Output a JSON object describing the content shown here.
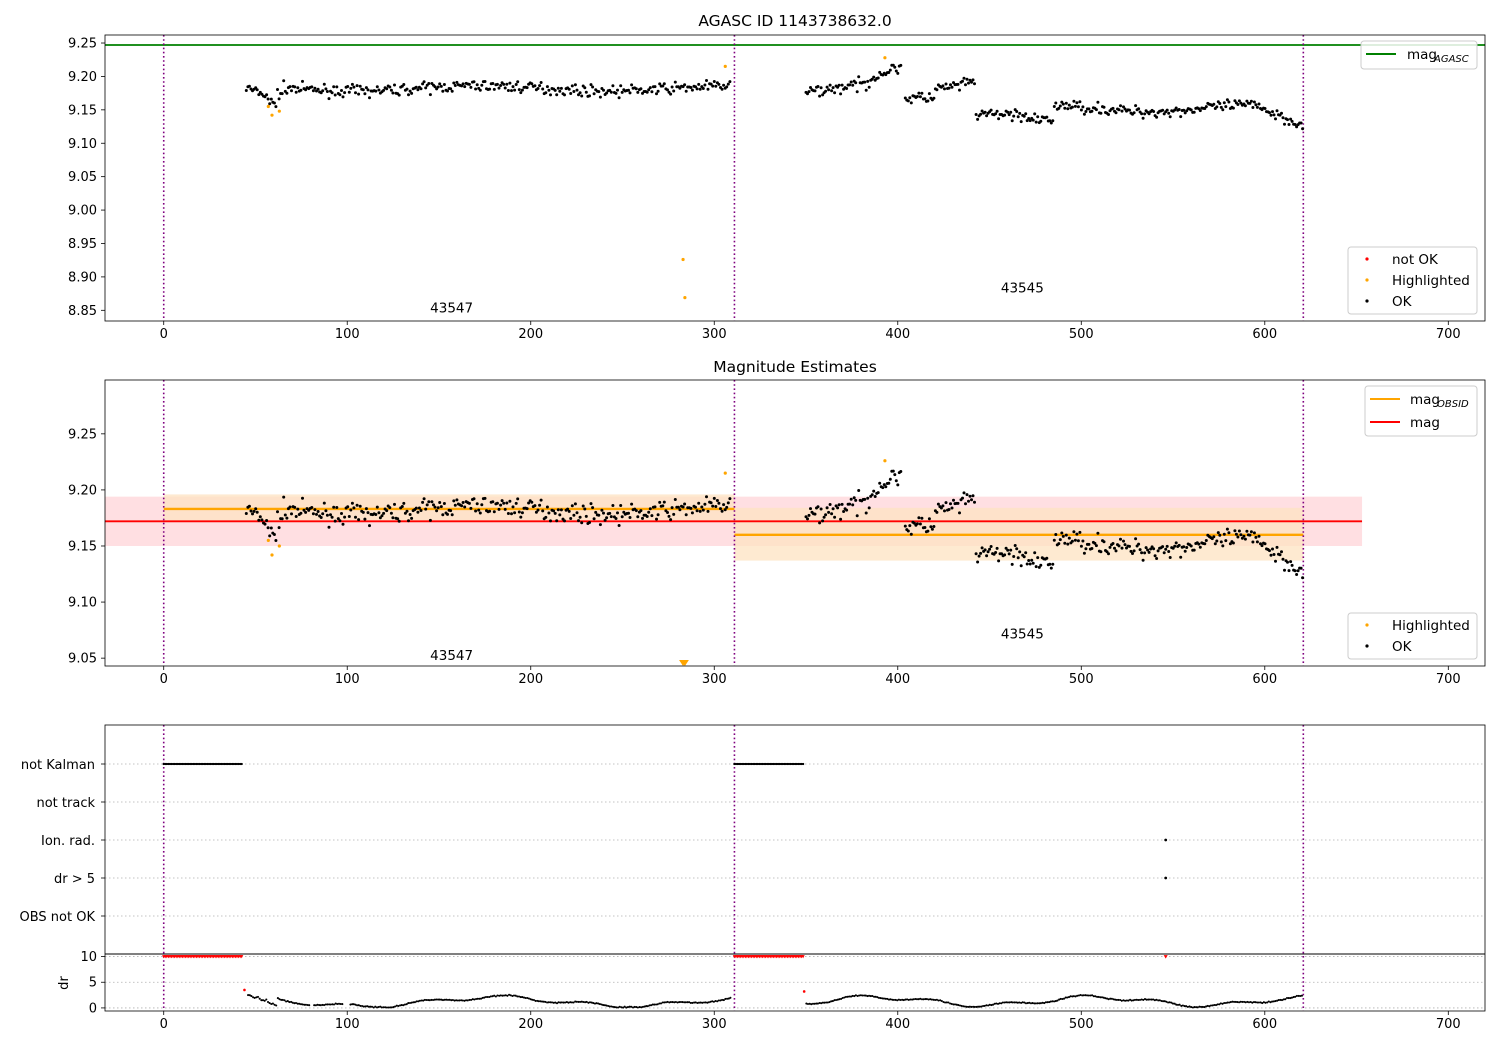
{
  "window": {
    "width": 1500,
    "height": 1050
  },
  "colors": {
    "ok": "#000000",
    "highlighted": "#ffa500",
    "not_ok": "#ff0000",
    "mag_agasc_line": "#008000",
    "mag_obsid_line": "#ffa500",
    "mag_line": "#ff0000",
    "obsid_separator": "#7f007f",
    "mag_band": "#ffc0c5",
    "mag_obsid_band": "#fde3c2"
  },
  "chart_data": [
    {
      "type": "scatter",
      "title": "AGASC ID 1143738632.0",
      "xlim": [
        -32,
        720
      ],
      "ylim": [
        8.834,
        9.262
      ],
      "xticks": [
        "0",
        "100",
        "200",
        "300",
        "400",
        "500",
        "600",
        "700"
      ],
      "yticks": [
        "8.85",
        "8.90",
        "8.95",
        "9.00",
        "9.05",
        "9.10",
        "9.15",
        "9.20",
        "9.25"
      ],
      "obsid_boundaries": [
        0,
        311,
        621
      ],
      "obsid_labels": [
        {
          "text": "43547",
          "x": 155,
          "y": 8.854
        },
        {
          "text": "43545",
          "x": 466,
          "y": 8.884
        }
      ],
      "hlines": [
        {
          "name": "mag_AGASC",
          "y": 9.247
        }
      ],
      "legend": {
        "upper": [
          {
            "label": "mag",
            "sub": "AGASC",
            "line": "mag_agasc_line"
          }
        ],
        "lower": [
          {
            "label": "not OK",
            "marker": "not_ok"
          },
          {
            "label": "Highlighted",
            "marker": "highlighted"
          },
          {
            "label": "OK",
            "marker": "ok"
          }
        ]
      },
      "highlighted_points": [
        [
          57,
          9.155
        ],
        [
          59,
          9.142
        ],
        [
          63,
          9.148
        ],
        [
          283,
          8.926
        ],
        [
          284,
          8.869
        ],
        [
          306,
          9.215
        ],
        [
          393,
          9.228
        ]
      ]
    },
    {
      "type": "scatter",
      "title": "Magnitude Estimates",
      "xlim": [
        -32,
        720
      ],
      "ylim": [
        9.043,
        9.298
      ],
      "xticks": [
        "0",
        "100",
        "200",
        "300",
        "400",
        "500",
        "600",
        "700"
      ],
      "yticks": [
        "9.05",
        "9.10",
        "9.15",
        "9.20",
        "9.25"
      ],
      "obsid_boundaries": [
        0,
        311,
        621
      ],
      "obsid_labels": [
        {
          "text": "43547",
          "x": 155,
          "y": 9.053
        },
        {
          "text": "43545",
          "x": 466,
          "y": 9.072
        }
      ],
      "mag": {
        "value": 9.172,
        "band": [
          9.15,
          9.194
        ],
        "x_range": [
          -32,
          653
        ]
      },
      "mag_obsid": [
        {
          "obsid": "43547",
          "x_range": [
            0,
            311
          ],
          "value": 9.183,
          "band": [
            9.172,
            9.196
          ]
        },
        {
          "obsid": "43545",
          "x_range": [
            311,
            621
          ],
          "value": 9.16,
          "band": [
            9.137,
            9.184
          ]
        }
      ],
      "legend": {
        "upper": [
          {
            "label": "mag",
            "sub": "OBSID",
            "line": "mag_obsid_line"
          },
          {
            "label": "mag",
            "sub": "",
            "line": "mag_line"
          }
        ],
        "lower": [
          {
            "label": "Highlighted",
            "marker": "highlighted"
          },
          {
            "label": "OK",
            "marker": "ok"
          }
        ]
      },
      "highlighted_points": [
        [
          57,
          9.155
        ],
        [
          59,
          9.142
        ],
        [
          63,
          9.15
        ],
        [
          283,
          9.047
        ],
        [
          284,
          9.047
        ],
        [
          306,
          9.215
        ],
        [
          393,
          9.226
        ]
      ]
    },
    {
      "type": "scatter",
      "title": "",
      "xlim": [
        -32,
        720
      ],
      "flag_rows": [
        "not Kalman",
        "not track",
        "Ion. rad.",
        "dr > 5",
        "OBS not OK"
      ],
      "obsid_boundaries": [
        0,
        311,
        621
      ],
      "flags": {
        "not Kalman": [
          [
            0,
            43
          ],
          [
            311,
            349
          ]
        ],
        "not track": [],
        "Ion. rad.": [
          [
            546,
            546
          ]
        ],
        "dr > 5": [
          [
            546,
            546
          ]
        ],
        "OBS not OK": []
      },
      "dr": {
        "ylabel": "dr",
        "ylim": [
          -0.6,
          10.5
        ],
        "yticks": [
          "0",
          "5",
          "10"
        ],
        "clipped_value": 10,
        "clipped_ranges": [
          [
            0,
            43
          ],
          [
            311,
            349
          ],
          [
            546,
            546
          ]
        ],
        "outliers": [
          [
            44,
            3.5
          ],
          [
            349,
            3.2
          ]
        ]
      },
      "xticks": [
        "0",
        "100",
        "200",
        "300",
        "400",
        "500",
        "600",
        "700"
      ]
    }
  ]
}
